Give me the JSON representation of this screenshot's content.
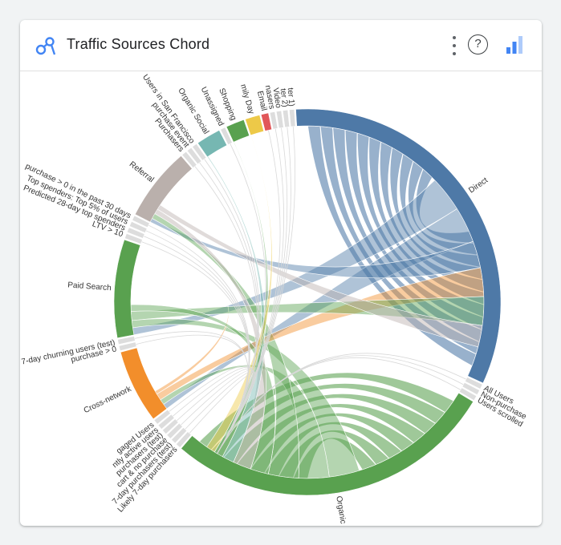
{
  "card": {
    "title": "Traffic Sources Chord",
    "help_label": "?",
    "icons": {
      "header": "connections-icon",
      "menu": "more-vert-icon",
      "help": "help-icon",
      "insights": "insights-bar-icon"
    }
  },
  "colors": {
    "direct": "#4e79a7",
    "organic": "#59a14f",
    "cross_network": "#f28e2b",
    "paid_search": "#59a14f",
    "referral": "#bab0ac",
    "organic_social": "#76b7b2",
    "shopping": "#59a14f",
    "family_day": "#edc948",
    "email": "#e15759"
  },
  "chart_data": {
    "type": "chord",
    "title": "Traffic Sources Chord",
    "groups": [
      {
        "label": "Direct",
        "color": "#4e79a7",
        "value": 32
      },
      {
        "label": "All Users",
        "color": "#dddddd",
        "value": 0.4
      },
      {
        "label": "Non-purchasers",
        "color": "#dddddd",
        "value": 0.4
      },
      {
        "label": "Users scrolled past",
        "color": "#dddddd",
        "value": 0.4
      },
      {
        "label": "Organic",
        "color": "#59a14f",
        "value": 27
      },
      {
        "label": "Likely 7-day purchasers",
        "color": "#dddddd",
        "value": 0.4
      },
      {
        "label": "Likely 7-day purchasers (test)",
        "color": "#dddddd",
        "value": 0.4
      },
      {
        "label": "Added to cart & no purchase",
        "color": "#dddddd",
        "value": 0.4
      },
      {
        "label": "Likely purchasers (test)",
        "color": "#dddddd",
        "value": 0.4
      },
      {
        "label": "Recently active users",
        "color": "#dddddd",
        "value": 0.4
      },
      {
        "label": "Engaged Users",
        "color": "#dddddd",
        "value": 0.4
      },
      {
        "label": "Cross-network",
        "color": "#f28e2b",
        "value": 6
      },
      {
        "label": "purchase > 0",
        "color": "#dddddd",
        "value": 0.4
      },
      {
        "label": "Likely 7-day churning users (test)",
        "color": "#dddddd",
        "value": 0.4
      },
      {
        "label": "Paid Search",
        "color": "#59a14f",
        "value": 8
      },
      {
        "label": "LTV > 10",
        "color": "#dddddd",
        "value": 0.4
      },
      {
        "label": "Predicted 28-day top spenders",
        "color": "#dddddd",
        "value": 0.4
      },
      {
        "label": "Top spenders: Top 5% of users",
        "color": "#dddddd",
        "value": 0.4
      },
      {
        "label": "purchase > 0 in the past 30 days",
        "color": "#dddddd",
        "value": 0.4
      },
      {
        "label": "Referral",
        "color": "#bab0ac",
        "value": 6
      },
      {
        "label": "Purchasers",
        "color": "#dddddd",
        "value": 0.4
      },
      {
        "label": "purchase event",
        "color": "#dddddd",
        "value": 0.4
      },
      {
        "label": "Users in San Francisco",
        "color": "#dddddd",
        "value": 0.4
      },
      {
        "label": "Organic Social",
        "color": "#76b7b2",
        "value": 2
      },
      {
        "label": "Unassigned",
        "color": "#dddddd",
        "value": 0.4
      },
      {
        "label": "Shopping",
        "color": "#59a14f",
        "value": 1.5
      },
      {
        "label": "Family Day",
        "color": "#edc948",
        "value": 1.2
      },
      {
        "label": "Email",
        "color": "#e15759",
        "value": 0.6
      },
      {
        "label": "Purchasers",
        "color": "#dddddd",
        "value": 0.4
      },
      {
        "label": "Video",
        "color": "#dddddd",
        "value": 0.4
      },
      {
        "label": "Converter 2",
        "color": "#dddddd",
        "value": 0.4
      },
      {
        "label": "Converter 1",
        "color": "#dddddd",
        "value": 0.4
      }
    ],
    "visible_labels": [
      {
        "text": "Direct",
        "g": 0
      },
      {
        "text": "All Users",
        "g": 1
      },
      {
        "text": "Non-purchase",
        "g": 2
      },
      {
        "text": "Users scrolled",
        "g": 3
      },
      {
        "text": "Organic",
        "g": 4
      },
      {
        "text": "Likely 7-day purchasers",
        "g": 5
      },
      {
        "text": "7-day purchasers (test)",
        "g": 6
      },
      {
        "text": "cart & no purchase",
        "g": 7
      },
      {
        "text": "purchasers (test)",
        "g": 8
      },
      {
        "text": "ntly active users",
        "g": 9
      },
      {
        "text": "gaged Users",
        "g": 10
      },
      {
        "text": "Cross-network",
        "g": 11
      },
      {
        "text": "purchase > 0",
        "g": 12
      },
      {
        "text": "Likely 7-day churning users (test)",
        "g": 13
      },
      {
        "text": "Paid Search",
        "g": 14
      },
      {
        "text": "LTV > 10",
        "g": 15
      },
      {
        "text": "Predicted 28-day top spenders",
        "g": 16
      },
      {
        "text": "Top spenders: Top 5% of users",
        "g": 17
      },
      {
        "text": "purchase > 0 in the past 30 days",
        "g": 18
      },
      {
        "text": "Referral",
        "g": 19
      },
      {
        "text": "Purchasers",
        "g": 20
      },
      {
        "text": "purchase event",
        "g": 21
      },
      {
        "text": "Users in San Francisco",
        "g": 22
      },
      {
        "text": "Organic Social",
        "g": 23
      },
      {
        "text": "Unassigned",
        "g": 24
      },
      {
        "text": "Shopping",
        "g": 25
      },
      {
        "text": "mily Day",
        "g": 26
      },
      {
        "text": "Email",
        "g": 27
      },
      {
        "text": "nasers",
        "g": 28
      },
      {
        "text": "Video",
        "g": 29
      },
      {
        "text": "ter 2)",
        "g": 30
      },
      {
        "text": "ter 1)",
        "g": 31
      }
    ],
    "self_ribbons": [
      {
        "group": 0,
        "bands": 11
      },
      {
        "group": 4,
        "bands": 8
      }
    ],
    "ribbons": [
      {
        "source": 0,
        "target": 14,
        "value": 0.8
      },
      {
        "source": 0,
        "target": 11,
        "value": 0.8
      },
      {
        "source": 0,
        "target": 19,
        "value": 0.6
      },
      {
        "source": 4,
        "target": 14,
        "value": 0.8
      },
      {
        "source": 4,
        "target": 11,
        "value": 0.8
      },
      {
        "source": 4,
        "target": 19,
        "value": 0.8
      },
      {
        "source": 11,
        "target": 0,
        "value": 0.8
      },
      {
        "source": 11,
        "target": 16,
        "value": 0.4
      },
      {
        "source": 14,
        "target": 0,
        "value": 0.8
      },
      {
        "source": 14,
        "target": 4,
        "value": 0.6
      },
      {
        "source": 19,
        "target": 4,
        "value": 0.6
      },
      {
        "source": 19,
        "target": 0,
        "value": 0.6
      },
      {
        "source": 23,
        "target": 4,
        "value": 0.4
      },
      {
        "source": 25,
        "target": 4,
        "value": 0.3
      },
      {
        "source": 26,
        "target": 4,
        "value": 0.3
      }
    ]
  }
}
